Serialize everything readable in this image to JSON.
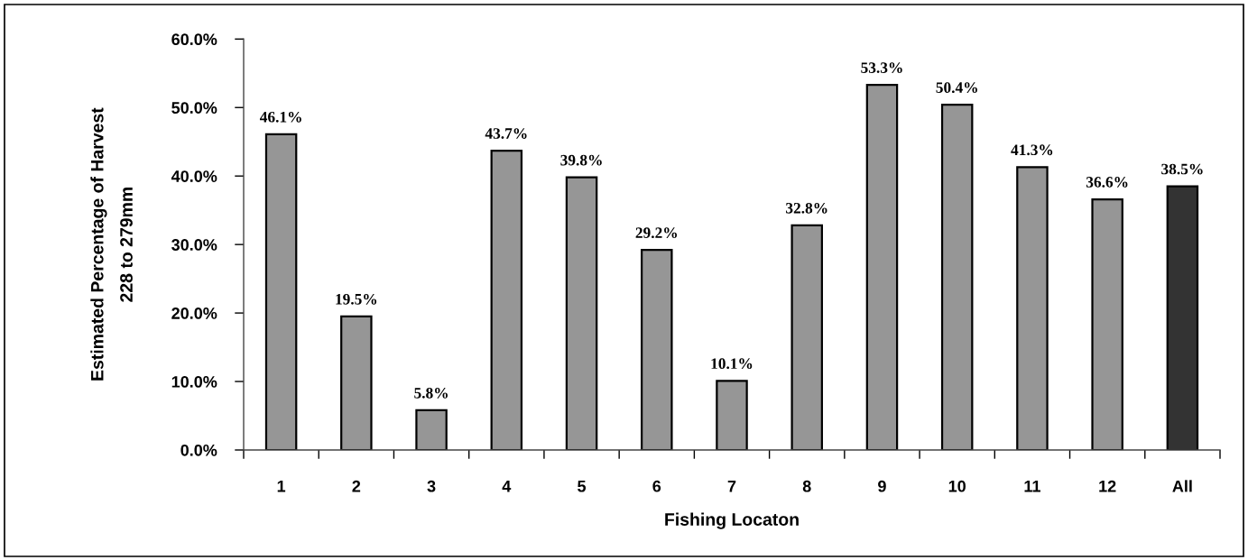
{
  "chart_data": {
    "type": "bar",
    "categories": [
      "1",
      "2",
      "3",
      "4",
      "5",
      "6",
      "7",
      "8",
      "9",
      "10",
      "11",
      "12",
      "All"
    ],
    "values": [
      46.1,
      19.5,
      5.8,
      43.7,
      39.8,
      29.2,
      10.1,
      32.8,
      53.3,
      50.4,
      41.3,
      36.6,
      38.5
    ],
    "colors": [
      "#969696",
      "#969696",
      "#969696",
      "#969696",
      "#969696",
      "#969696",
      "#969696",
      "#969696",
      "#969696",
      "#969696",
      "#969696",
      "#969696",
      "#333333"
    ],
    "value_labels": [
      "46.1%",
      "19.5%",
      "5.8%",
      "43.7%",
      "39.8%",
      "29.2%",
      "10.1%",
      "32.8%",
      "53.3%",
      "50.4%",
      "41.3%",
      "36.6%",
      "38.5%"
    ],
    "xlabel": "Fishing Locaton",
    "ylabel": "Estimated Percentage of Harvest\n228 to 279mm",
    "ylim": [
      0,
      60
    ],
    "yticks": [
      {
        "value": 0,
        "label": "0.0%"
      },
      {
        "value": 10,
        "label": "10.0%"
      },
      {
        "value": 20,
        "label": "20.0%"
      },
      {
        "value": 30,
        "label": "30.0%"
      },
      {
        "value": 40,
        "label": "40.0%"
      },
      {
        "value": 50,
        "label": "50.0%"
      },
      {
        "value": 60,
        "label": "60.0%"
      }
    ]
  }
}
